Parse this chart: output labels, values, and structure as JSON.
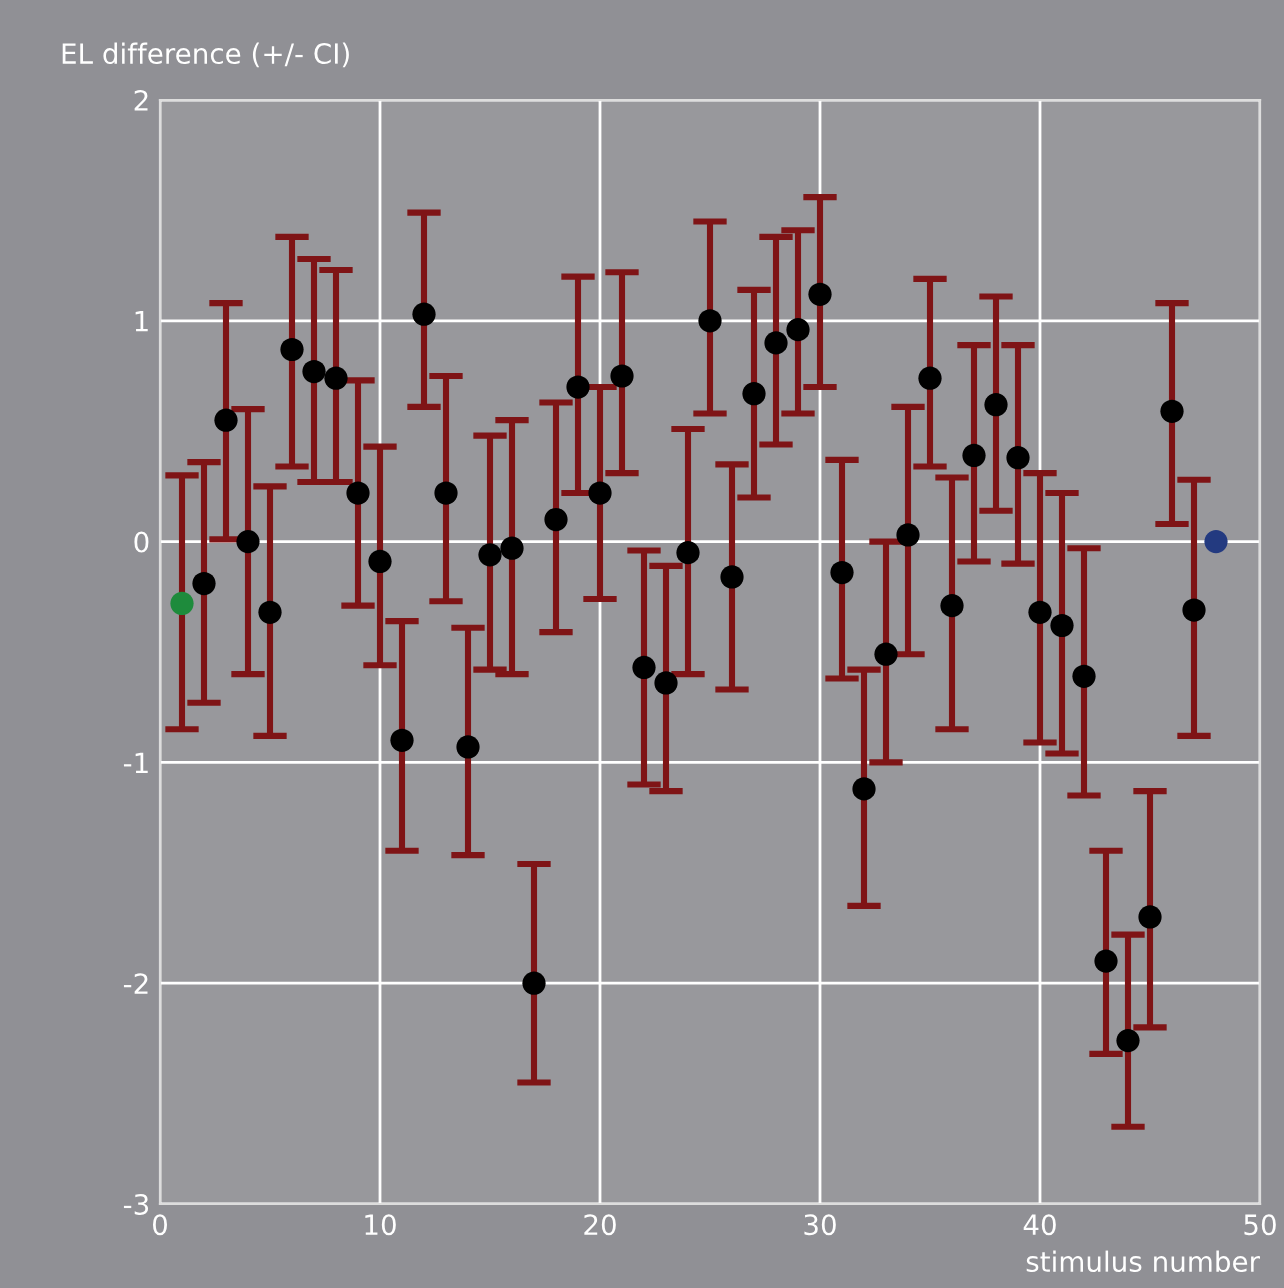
{
  "chart_data": {
    "type": "scatter",
    "xlabel": "stimulus number",
    "ylabel": "EL difference (+/- CI)",
    "x": [
      1,
      2,
      3,
      4,
      5,
      6,
      7,
      8,
      9,
      10,
      11,
      12,
      13,
      14,
      15,
      16,
      17,
      18,
      19,
      20,
      21,
      22,
      23,
      24,
      25,
      26,
      27,
      28,
      29,
      30,
      31,
      32,
      33,
      34,
      35,
      36,
      37,
      38,
      39,
      40,
      41,
      42,
      43,
      44,
      45,
      46,
      47,
      48
    ],
    "values": [
      -0.28,
      -0.19,
      0.55,
      0.0,
      -0.32,
      0.87,
      0.77,
      0.74,
      0.22,
      -0.09,
      -0.9,
      1.03,
      0.22,
      -0.93,
      -0.06,
      -0.03,
      -2.0,
      0.1,
      0.7,
      0.22,
      0.75,
      -0.57,
      -0.64,
      -0.05,
      1.0,
      -0.16,
      0.67,
      0.9,
      0.96,
      1.12,
      -0.14,
      -1.12,
      -0.51,
      0.03,
      0.74,
      -0.29,
      0.39,
      0.62,
      0.38,
      -0.32,
      -0.38,
      -0.61,
      -1.9,
      -2.26,
      -1.7,
      0.59,
      -0.31,
      0.0
    ],
    "errors": [
      [
        -0.85,
        0.3
      ],
      [
        -0.73,
        0.36
      ],
      [
        0.01,
        1.08
      ],
      [
        -0.6,
        0.6
      ],
      [
        -0.88,
        0.25
      ],
      [
        0.34,
        1.38
      ],
      [
        0.27,
        1.28
      ],
      [
        0.27,
        1.23
      ],
      [
        -0.29,
        0.73
      ],
      [
        -0.56,
        0.43
      ],
      [
        -1.4,
        -0.36
      ],
      [
        0.61,
        1.49
      ],
      [
        -0.27,
        0.75
      ],
      [
        -1.42,
        -0.39
      ],
      [
        -0.58,
        0.48
      ],
      [
        -0.6,
        0.55
      ],
      [
        -2.45,
        -1.46
      ],
      [
        -0.41,
        0.63
      ],
      [
        0.22,
        1.2
      ],
      [
        -0.26,
        0.7
      ],
      [
        0.31,
        1.22
      ],
      [
        -1.1,
        -0.04
      ],
      [
        -1.13,
        -0.11
      ],
      [
        -0.6,
        0.51
      ],
      [
        0.58,
        1.45
      ],
      [
        -0.67,
        0.35
      ],
      [
        0.2,
        1.14
      ],
      [
        0.44,
        1.38
      ],
      [
        0.58,
        1.41
      ],
      [
        0.7,
        1.56
      ],
      [
        -0.62,
        0.37
      ],
      [
        -1.65,
        -0.58
      ],
      [
        -1.0,
        0.0
      ],
      [
        -0.51,
        0.61
      ],
      [
        0.34,
        1.19
      ],
      [
        -0.85,
        0.29
      ],
      [
        -0.09,
        0.89
      ],
      [
        0.14,
        1.11
      ],
      [
        -0.1,
        0.89
      ],
      [
        -0.91,
        0.31
      ],
      [
        -0.96,
        0.22
      ],
      [
        -1.15,
        -0.03
      ],
      [
        -2.32,
        -1.4
      ],
      [
        -2.65,
        -1.78
      ],
      [
        -2.2,
        -1.13
      ],
      [
        0.08,
        1.08
      ],
      [
        -0.88,
        0.28
      ],
      null
    ],
    "colors": [
      "#1e8b3c",
      "#000000",
      "#000000",
      "#000000",
      "#000000",
      "#000000",
      "#000000",
      "#000000",
      "#000000",
      "#000000",
      "#000000",
      "#000000",
      "#000000",
      "#000000",
      "#000000",
      "#000000",
      "#000000",
      "#000000",
      "#000000",
      "#000000",
      "#000000",
      "#000000",
      "#000000",
      "#000000",
      "#000000",
      "#000000",
      "#000000",
      "#000000",
      "#000000",
      "#000000",
      "#000000",
      "#000000",
      "#000000",
      "#000000",
      "#000000",
      "#000000",
      "#000000",
      "#000000",
      "#000000",
      "#000000",
      "#000000",
      "#000000",
      "#000000",
      "#000000",
      "#000000",
      "#000000",
      "#000000",
      "#233a80"
    ],
    "xlim": [
      0,
      50
    ],
    "xticks": [
      0,
      10,
      20,
      30,
      40,
      50
    ],
    "ylim": [
      -3,
      2
    ],
    "yticks": [
      -3,
      -2,
      -1,
      0,
      1,
      2
    ],
    "grid": true,
    "marker": "circle"
  }
}
